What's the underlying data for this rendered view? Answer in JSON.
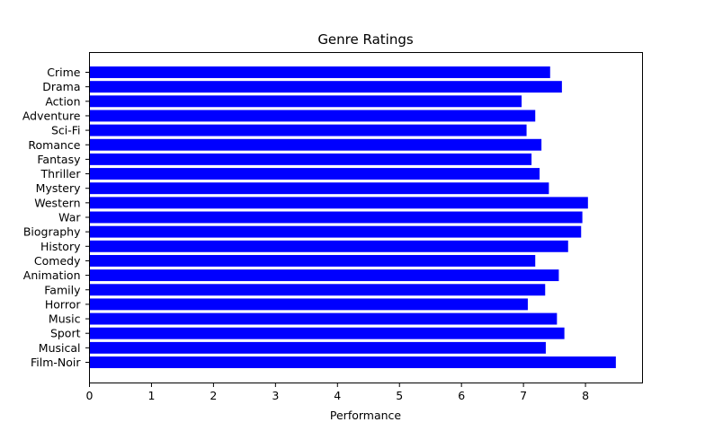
{
  "chart_data": {
    "type": "bar",
    "orientation": "horizontal",
    "title": "Genre Ratings",
    "xlabel": "Performance",
    "ylabel": "",
    "xlim": [
      0,
      8.92
    ],
    "x_ticks": [
      "0",
      "1",
      "2",
      "3",
      "4",
      "5",
      "6",
      "7",
      "8"
    ],
    "grid": false,
    "bar_color": "#0000ff",
    "categories": [
      "Crime",
      "Drama",
      "Action",
      "Adventure",
      "Sci-Fi",
      "Romance",
      "Fantasy",
      "Thriller",
      "Mystery",
      "Western",
      "War",
      "Biography",
      "History",
      "Comedy",
      "Animation",
      "Family",
      "Horror",
      "Music",
      "Sport",
      "Musical",
      "Film-Noir"
    ],
    "values": [
      7.43,
      7.62,
      6.97,
      7.19,
      7.05,
      7.29,
      7.13,
      7.26,
      7.41,
      8.04,
      7.95,
      7.93,
      7.72,
      7.19,
      7.57,
      7.35,
      7.07,
      7.54,
      7.66,
      7.36,
      8.49
    ]
  }
}
